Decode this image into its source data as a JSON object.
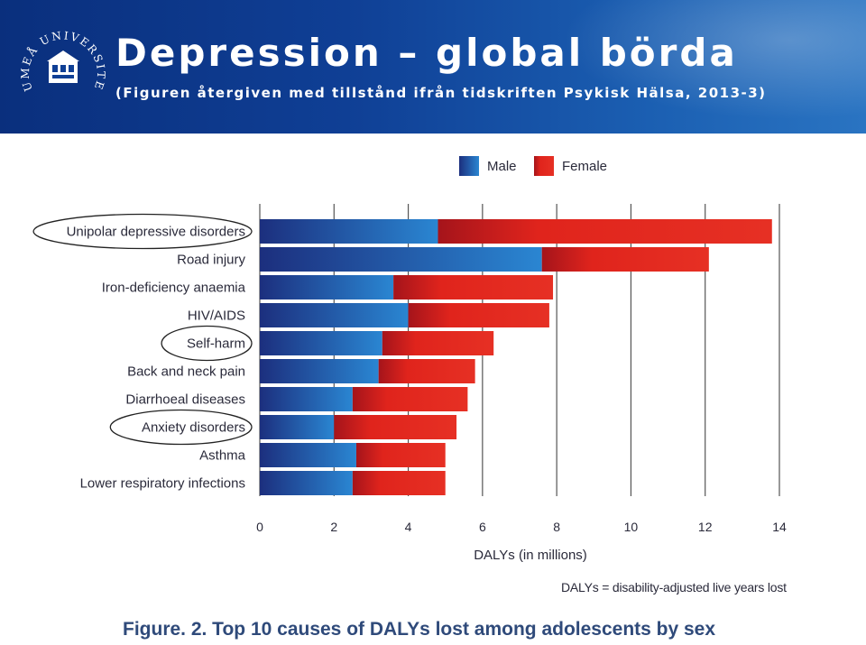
{
  "header": {
    "title": "Depression – global börda",
    "subtitle": "(Figuren återgiven med tillstånd ifrån tidskriften Psykisk Hälsa, 2013-3)",
    "logo_text": "UMEÅ UNIVERSITET"
  },
  "chart_data": {
    "type": "bar",
    "orientation": "horizontal",
    "stacked": true,
    "categories": [
      "Unipolar depressive disorders",
      "Road injury",
      "Iron-deficiency anaemia",
      "HIV/AIDS",
      "Self-harm",
      "Back and neck pain",
      "Diarrhoeal diseases",
      "Anxiety disorders",
      "Asthma",
      "Lower respiratory infections"
    ],
    "series": [
      {
        "name": "Male",
        "color": "#1a6fc0",
        "values": [
          4.8,
          7.6,
          3.6,
          4.0,
          3.3,
          3.2,
          2.5,
          2.0,
          2.6,
          2.5
        ]
      },
      {
        "name": "Female",
        "color": "#e0241c",
        "values": [
          9.0,
          4.5,
          4.3,
          3.8,
          3.0,
          2.6,
          3.1,
          3.3,
          2.4,
          2.5
        ]
      }
    ],
    "xlabel": "DALYs (in millions)",
    "xlim": [
      0,
      14
    ],
    "xticks": [
      "0",
      "2",
      "4",
      "6",
      "8",
      "10",
      "12",
      "14"
    ],
    "legend": "top",
    "highlighted": [
      "Unipolar depressive disorders",
      "Self-harm",
      "Anxiety disorders"
    ],
    "note": "DALYs = disability-adjusted live years lost",
    "caption": "Figure. 2. Top 10 causes of DALYs lost among adolescents by sex"
  }
}
